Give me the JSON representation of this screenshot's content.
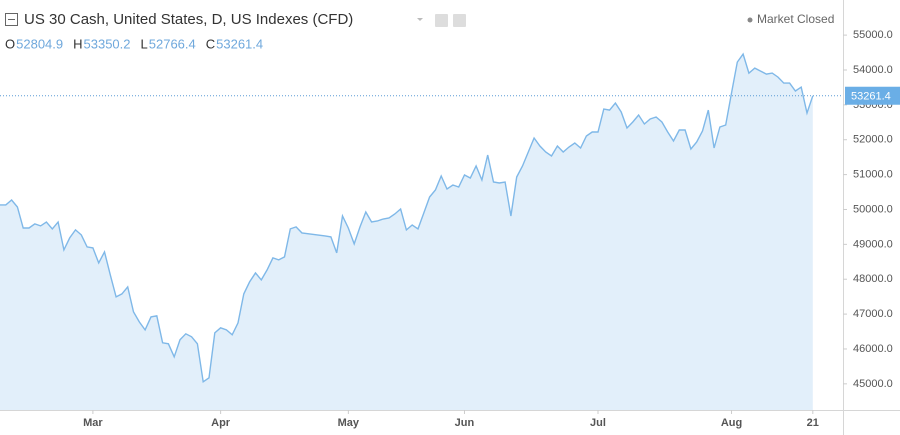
{
  "chart_data": {
    "type": "area",
    "title": "US 30 Cash, United States, D, US Indexes (CFD)",
    "status": "Market Closed",
    "ohlc": [
      {
        "label": "O",
        "value": 52804.9
      },
      {
        "label": "H",
        "value": 53350.2
      },
      {
        "label": "L",
        "value": 52766.4
      },
      {
        "label": "C",
        "value": 53261.4
      }
    ],
    "last_price": 53261.4,
    "x": [
      0,
      1,
      2,
      3,
      4,
      5,
      6,
      7,
      8,
      9,
      10,
      11,
      12,
      13,
      14,
      15,
      16,
      17,
      18,
      19,
      20,
      21,
      22,
      23,
      24,
      25,
      26,
      27,
      28,
      29,
      30,
      31,
      32,
      33,
      34,
      35,
      36,
      37,
      38,
      39,
      40,
      41,
      42,
      43,
      44,
      45,
      46,
      47,
      48,
      49,
      50,
      51,
      52,
      56,
      57,
      58,
      59,
      60,
      61,
      62,
      63,
      64,
      65,
      66,
      67,
      68,
      69,
      70,
      71,
      72,
      73,
      74,
      75,
      76,
      77,
      78,
      79,
      80,
      81,
      82,
      83,
      84,
      85,
      86,
      87,
      88,
      89,
      90,
      91,
      92,
      93,
      94,
      95,
      96,
      97,
      98,
      99,
      100,
      101,
      102,
      103,
      104,
      105,
      106,
      107,
      108,
      109,
      110,
      111,
      112,
      113,
      114,
      115,
      116,
      117,
      118,
      119,
      120,
      121,
      122,
      123,
      124,
      125,
      126,
      127,
      128,
      129,
      130,
      131,
      132,
      133,
      134,
      135,
      136,
      137,
      138,
      139,
      140
    ],
    "series": [
      {
        "name": "US 30 Cash",
        "color": "#7fb8e8",
        "fill": "#e2effa",
        "values": [
          50130,
          50130,
          50273,
          50072,
          49470,
          49470,
          49585,
          49528,
          49642,
          49442,
          49642,
          48840,
          49184,
          49413,
          49270,
          48926,
          48897,
          48468,
          48783,
          48124,
          47494,
          47580,
          47780,
          47064,
          46777,
          46548,
          46921,
          46950,
          46176,
          46147,
          45775,
          46262,
          46434,
          46348,
          46147,
          45058,
          45173,
          46462,
          46606,
          46548,
          46405,
          46749,
          47580,
          47924,
          48181,
          47981,
          48267,
          48611,
          48554,
          48640,
          49442,
          49499,
          49327,
          49241,
          49213,
          48754,
          49814,
          49470,
          49012,
          49499,
          49929,
          49642,
          49671,
          49728,
          49757,
          49871,
          50015,
          49413,
          49556,
          49442,
          49900,
          50359,
          50559,
          50960,
          50588,
          50703,
          50645,
          50989,
          50903,
          51247,
          50846,
          51562,
          50788,
          50760,
          50788,
          49814,
          50932,
          51247,
          51648,
          52049,
          51820,
          51648,
          51533,
          51820,
          51648,
          51791,
          51906,
          51763,
          52106,
          52221,
          52221,
          52880,
          52851,
          53051,
          52794,
          52336,
          52508,
          52708,
          52450,
          52593,
          52651,
          52508,
          52221,
          51963,
          52278,
          52278,
          51734,
          51935,
          52250,
          52851,
          51763,
          52364,
          52422,
          53338,
          54226,
          54456,
          53911,
          54054,
          53969,
          53883,
          53911,
          53797,
          53625,
          53625,
          53396,
          53510,
          52766,
          53261
        ]
      }
    ],
    "xlim": [
      0,
      145.2
    ],
    "xticks": [
      {
        "value": 16,
        "label": "Mar"
      },
      {
        "value": 38,
        "label": "Apr"
      },
      {
        "value": 60,
        "label": "May"
      },
      {
        "value": 80,
        "label": "Jun"
      },
      {
        "value": 103,
        "label": "Jul"
      },
      {
        "value": 126,
        "label": "Aug"
      },
      {
        "value": 140,
        "label": "21"
      }
    ],
    "ylim": [
      44250,
      55720
    ],
    "yticks": [
      {
        "value": 45000,
        "label": "45000.0"
      },
      {
        "value": 46000,
        "label": "46000.0"
      },
      {
        "value": 47000,
        "label": "47000.0"
      },
      {
        "value": 48000,
        "label": "48000.0"
      },
      {
        "value": 49000,
        "label": "49000.0"
      },
      {
        "value": 50000,
        "label": "50000.0"
      },
      {
        "value": 51000,
        "label": "51000.0"
      },
      {
        "value": 52000,
        "label": "52000.0"
      },
      {
        "value": 53000,
        "label": "53000.0"
      },
      {
        "value": 54000,
        "label": "54000.0"
      },
      {
        "value": 55000,
        "label": "55000.0"
      }
    ]
  }
}
